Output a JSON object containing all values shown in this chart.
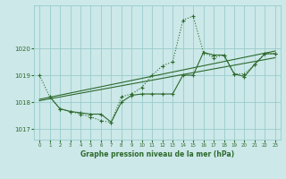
{
  "title": "Graphe pression niveau de la mer (hPa)",
  "bg_color": "#cce8e8",
  "grid_color": "#99cccc",
  "line_color": "#2d6a2d",
  "markersize": 3,
  "linewidth": 0.8,
  "xlim": [
    -0.5,
    23.5
  ],
  "ylim": [
    1016.6,
    1021.6
  ],
  "yticks": [
    1017,
    1018,
    1019,
    1020
  ],
  "xticks": [
    0,
    1,
    2,
    3,
    4,
    5,
    6,
    7,
    8,
    9,
    10,
    11,
    12,
    13,
    14,
    15,
    16,
    17,
    18,
    19,
    20,
    21,
    22,
    23
  ],
  "series1_x": [
    0,
    1,
    2,
    3,
    4,
    5,
    6,
    7,
    8,
    9,
    10,
    11,
    12,
    13,
    14,
    15,
    16,
    17,
    18,
    19,
    20,
    21,
    22,
    23
  ],
  "series1_y": [
    1019.0,
    1018.2,
    1017.75,
    1017.65,
    1017.55,
    1017.45,
    1017.3,
    1017.25,
    1018.2,
    1018.3,
    1018.55,
    1019.0,
    1019.35,
    1019.5,
    1021.05,
    1021.2,
    1019.85,
    1019.65,
    1019.75,
    1019.05,
    1019.05,
    1019.4,
    1019.8,
    1019.8
  ],
  "series2_x": [
    1,
    2,
    3,
    4,
    5,
    6,
    7,
    8,
    9,
    10,
    11,
    12,
    13,
    14,
    15,
    16,
    17,
    18,
    19,
    20,
    21,
    22,
    23
  ],
  "series2_y": [
    1018.2,
    1017.75,
    1017.65,
    1017.6,
    1017.55,
    1017.55,
    1017.25,
    1018.0,
    1018.25,
    1018.3,
    1018.3,
    1018.3,
    1018.3,
    1019.0,
    1019.0,
    1019.85,
    1019.75,
    1019.75,
    1019.05,
    1018.95,
    1019.4,
    1019.8,
    1019.8
  ],
  "trend1_x": [
    0,
    23
  ],
  "trend1_y": [
    1018.1,
    1019.9
  ],
  "trend2_x": [
    0,
    23
  ],
  "trend2_y": [
    1018.05,
    1019.65
  ]
}
